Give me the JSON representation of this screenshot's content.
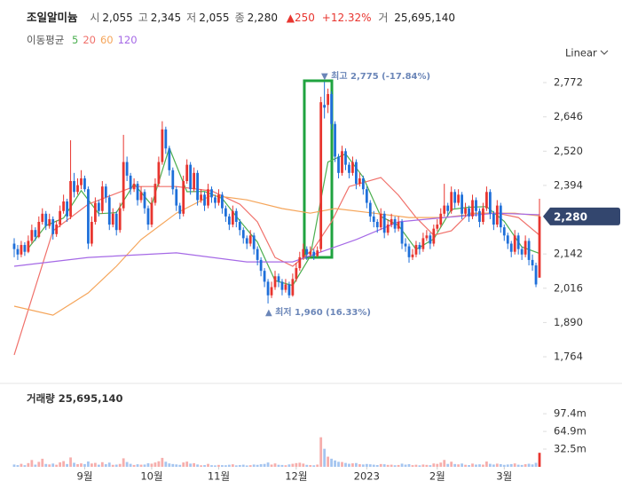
{
  "chart_data": {
    "type": "candlestick",
    "title": "조일알미늄",
    "quote": [
      {
        "label": "시",
        "value": "2,055"
      },
      {
        "label": "고",
        "value": "2,345"
      },
      {
        "label": "저",
        "value": "2,055"
      },
      {
        "label": "종",
        "value": "2,280"
      }
    ],
    "change": "▲250",
    "change_pct": "+12.32%",
    "volume_quote": {
      "label": "거",
      "value": "25,695,140"
    },
    "ma_label": "이동평균",
    "scale": "Linear",
    "up_color": "#e8352f",
    "down_color": "#1e6fd9",
    "candles": [
      [
        2180,
        2200,
        2130,
        2160
      ],
      [
        2160,
        2175,
        2120,
        2140
      ],
      [
        2140,
        2190,
        2130,
        2175
      ],
      [
        2175,
        2185,
        2135,
        2150
      ],
      [
        2150,
        2210,
        2145,
        2190
      ],
      [
        2190,
        2250,
        2180,
        2230
      ],
      [
        2230,
        2240,
        2190,
        2205
      ],
      [
        2205,
        2280,
        2200,
        2260
      ],
      [
        2260,
        2310,
        2250,
        2290
      ],
      [
        2290,
        2300,
        2230,
        2245
      ],
      [
        2245,
        2290,
        2235,
        2270
      ],
      [
        2270,
        2280,
        2195,
        2215
      ],
      [
        2215,
        2265,
        2205,
        2250
      ],
      [
        2250,
        2320,
        2240,
        2300
      ],
      [
        2300,
        2360,
        2290,
        2335
      ],
      [
        2335,
        2345,
        2260,
        2280
      ],
      [
        2280,
        2560,
        2270,
        2410
      ],
      [
        2410,
        2440,
        2350,
        2370
      ],
      [
        2370,
        2420,
        2360,
        2395
      ],
      [
        2395,
        2450,
        2380,
        2420
      ],
      [
        2420,
        2430,
        2370,
        2380
      ],
      [
        2380,
        2390,
        2160,
        2180
      ],
      [
        2180,
        2280,
        2170,
        2260
      ],
      [
        2260,
        2350,
        2250,
        2330
      ],
      [
        2330,
        2340,
        2280,
        2300
      ],
      [
        2300,
        2410,
        2290,
        2390
      ],
      [
        2390,
        2400,
        2330,
        2350
      ],
      [
        2350,
        2360,
        2230,
        2250
      ],
      [
        2250,
        2310,
        2240,
        2290
      ],
      [
        2290,
        2300,
        2210,
        2230
      ],
      [
        2230,
        2330,
        2220,
        2310
      ],
      [
        2310,
        2580,
        2300,
        2480
      ],
      [
        2480,
        2500,
        2410,
        2430
      ],
      [
        2430,
        2440,
        2360,
        2380
      ],
      [
        2380,
        2420,
        2370,
        2400
      ],
      [
        2400,
        2410,
        2320,
        2340
      ],
      [
        2340,
        2390,
        2330,
        2370
      ],
      [
        2370,
        2380,
        2290,
        2310
      ],
      [
        2310,
        2320,
        2230,
        2250
      ],
      [
        2250,
        2350,
        2240,
        2330
      ],
      [
        2330,
        2420,
        2320,
        2400
      ],
      [
        2400,
        2500,
        2390,
        2480
      ],
      [
        2480,
        2630,
        2470,
        2600
      ],
      [
        2600,
        2610,
        2510,
        2530
      ],
      [
        2530,
        2540,
        2430,
        2450
      ],
      [
        2450,
        2460,
        2360,
        2380
      ],
      [
        2380,
        2390,
        2300,
        2320
      ],
      [
        2320,
        2330,
        2270,
        2290
      ],
      [
        2290,
        2430,
        2280,
        2410
      ],
      [
        2410,
        2490,
        2400,
        2470
      ],
      [
        2470,
        2480,
        2360,
        2380
      ],
      [
        2380,
        2460,
        2370,
        2440
      ],
      [
        2440,
        2450,
        2320,
        2340
      ],
      [
        2340,
        2380,
        2330,
        2360
      ],
      [
        2360,
        2370,
        2300,
        2320
      ],
      [
        2320,
        2400,
        2310,
        2380
      ],
      [
        2380,
        2390,
        2330,
        2350
      ],
      [
        2350,
        2360,
        2310,
        2330
      ],
      [
        2330,
        2380,
        2320,
        2360
      ],
      [
        2360,
        2370,
        2290,
        2310
      ],
      [
        2310,
        2320,
        2260,
        2280
      ],
      [
        2280,
        2290,
        2230,
        2250
      ],
      [
        2250,
        2320,
        2240,
        2300
      ],
      [
        2300,
        2310,
        2240,
        2260
      ],
      [
        2260,
        2270,
        2210,
        2230
      ],
      [
        2230,
        2240,
        2180,
        2200
      ],
      [
        2200,
        2210,
        2160,
        2180
      ],
      [
        2180,
        2230,
        2170,
        2210
      ],
      [
        2210,
        2220,
        2140,
        2160
      ],
      [
        2160,
        2170,
        2100,
        2120
      ],
      [
        2120,
        2130,
        2060,
        2080
      ],
      [
        2080,
        2090,
        2020,
        2040
      ],
      [
        2040,
        2050,
        1960,
        1990
      ],
      [
        1990,
        2040,
        1980,
        2020
      ],
      [
        2020,
        2080,
        2010,
        2060
      ],
      [
        2060,
        2070,
        2020,
        2040
      ],
      [
        2040,
        2050,
        1990,
        2010
      ],
      [
        2010,
        2050,
        2000,
        2030
      ],
      [
        2030,
        2040,
        1980,
        1990
      ],
      [
        1990,
        2070,
        1985,
        2050
      ],
      [
        2050,
        2110,
        2040,
        2090
      ],
      [
        2090,
        2150,
        2080,
        2130
      ],
      [
        2130,
        2180,
        2120,
        2160
      ],
      [
        2160,
        2170,
        2120,
        2140
      ],
      [
        2140,
        2170,
        2130,
        2150
      ],
      [
        2150,
        2160,
        2120,
        2135
      ],
      [
        2135,
        2170,
        2130,
        2155
      ],
      [
        2160,
        2720,
        2150,
        2700
      ],
      [
        2690,
        2775,
        2640,
        2680
      ],
      [
        2690,
        2750,
        2660,
        2730
      ],
      [
        2730,
        2740,
        2600,
        2620
      ],
      [
        2620,
        2630,
        2480,
        2500
      ],
      [
        2500,
        2510,
        2420,
        2440
      ],
      [
        2440,
        2540,
        2430,
        2520
      ],
      [
        2520,
        2530,
        2450,
        2470
      ],
      [
        2470,
        2480,
        2420,
        2440
      ],
      [
        2440,
        2500,
        2430,
        2480
      ],
      [
        2480,
        2490,
        2380,
        2400
      ],
      [
        2400,
        2440,
        2390,
        2420
      ],
      [
        2420,
        2430,
        2360,
        2380
      ],
      [
        2380,
        2390,
        2310,
        2330
      ],
      [
        2330,
        2340,
        2260,
        2280
      ],
      [
        2280,
        2300,
        2240,
        2260
      ],
      [
        2260,
        2270,
        2220,
        2240
      ],
      [
        2240,
        2310,
        2230,
        2290
      ],
      [
        2290,
        2300,
        2200,
        2220
      ],
      [
        2220,
        2270,
        2210,
        2250
      ],
      [
        2250,
        2290,
        2240,
        2270
      ],
      [
        2270,
        2280,
        2220,
        2235
      ],
      [
        2235,
        2280,
        2225,
        2260
      ],
      [
        2260,
        2270,
        2160,
        2180
      ],
      [
        2180,
        2200,
        2150,
        2170
      ],
      [
        2170,
        2180,
        2110,
        2130
      ],
      [
        2130,
        2160,
        2120,
        2140
      ],
      [
        2140,
        2190,
        2130,
        2175
      ],
      [
        2175,
        2185,
        2140,
        2160
      ],
      [
        2160,
        2220,
        2150,
        2200
      ],
      [
        2200,
        2230,
        2190,
        2210
      ],
      [
        2210,
        2220,
        2160,
        2180
      ],
      [
        2180,
        2250,
        2170,
        2235
      ],
      [
        2235,
        2270,
        2225,
        2250
      ],
      [
        2250,
        2310,
        2240,
        2290
      ],
      [
        2290,
        2400,
        2280,
        2320
      ],
      [
        2320,
        2330,
        2280,
        2300
      ],
      [
        2300,
        2390,
        2290,
        2370
      ],
      [
        2370,
        2380,
        2310,
        2330
      ],
      [
        2330,
        2380,
        2320,
        2360
      ],
      [
        2360,
        2370,
        2270,
        2290
      ],
      [
        2290,
        2330,
        2280,
        2310
      ],
      [
        2310,
        2320,
        2260,
        2280
      ],
      [
        2280,
        2360,
        2270,
        2340
      ],
      [
        2340,
        2350,
        2280,
        2300
      ],
      [
        2300,
        2310,
        2240,
        2260
      ],
      [
        2260,
        2330,
        2250,
        2310
      ],
      [
        2310,
        2390,
        2300,
        2370
      ],
      [
        2370,
        2380,
        2270,
        2290
      ],
      [
        2290,
        2300,
        2230,
        2250
      ],
      [
        2250,
        2340,
        2240,
        2320
      ],
      [
        2320,
        2330,
        2220,
        2240
      ],
      [
        2240,
        2250,
        2190,
        2210
      ],
      [
        2210,
        2220,
        2160,
        2180
      ],
      [
        2180,
        2190,
        2130,
        2150
      ],
      [
        2150,
        2230,
        2140,
        2210
      ],
      [
        2210,
        2220,
        2140,
        2160
      ],
      [
        2160,
        2170,
        2120,
        2140
      ],
      [
        2140,
        2210,
        2130,
        2190
      ],
      [
        2190,
        2200,
        2100,
        2120
      ],
      [
        2120,
        2140,
        2080,
        2100
      ],
      [
        2100,
        2110,
        2020,
        2030
      ],
      [
        2055,
        2345,
        2055,
        2280
      ]
    ],
    "ylim": [
      1689,
      2831
    ],
    "yticks": [
      {
        "value": 1764,
        "label": "1,764"
      },
      {
        "value": 1890,
        "label": "1,890"
      },
      {
        "value": 2016,
        "label": "2,016"
      },
      {
        "value": 2142,
        "label": "2,142"
      },
      {
        "value": 2394,
        "label": "2,394"
      },
      {
        "value": 2520,
        "label": "2,520"
      },
      {
        "value": 2646,
        "label": "2,646"
      },
      {
        "value": 2772,
        "label": "2,772"
      }
    ],
    "xticks": [
      {
        "value": 20,
        "label": "9월"
      },
      {
        "value": 39,
        "label": "10월"
      },
      {
        "value": 58,
        "label": "11월"
      },
      {
        "value": 80,
        "label": "12월"
      },
      {
        "value": 100,
        "label": "2023"
      },
      {
        "value": 120,
        "label": "2월"
      },
      {
        "value": 139,
        "label": "3월"
      }
    ],
    "current_price": {
      "value": 2280,
      "label": "2,280"
    },
    "annotations": [
      {
        "text": "▼ 최고 2,775 (-17.84%)"
      },
      {
        "text": "▲ 최저 1,960 (16.33%)"
      }
    ],
    "series": [
      {
        "name": "5",
        "color": "#4caf50",
        "x": [
          4,
          9,
          14,
          19,
          24,
          29,
          34,
          39,
          44,
          49,
          54,
          59,
          64,
          69,
          74,
          79,
          84,
          89,
          94,
          99,
          104,
          109,
          114,
          119,
          124,
          129,
          134,
          139,
          144,
          149
        ],
        "values": [
          2163,
          2246,
          2274,
          2375,
          2290,
          2294,
          2400,
          2322,
          2532,
          2371,
          2372,
          2346,
          2264,
          2186,
          2044,
          2026,
          2134,
          2480,
          2510,
          2424,
          2280,
          2247,
          2159,
          2197,
          2306,
          2314,
          2316,
          2262,
          2168,
          2144
        ]
      },
      {
        "name": "20",
        "color": "#f0706a",
        "x": [
          0,
          11,
          21,
          34,
          46,
          56,
          64,
          69,
          74,
          79,
          85,
          90,
          95,
          104,
          109,
          114,
          119,
          124,
          129,
          137,
          143,
          149
        ],
        "values": [
          1771,
          2227,
          2325,
          2390,
          2390,
          2374,
          2325,
          2260,
          2129,
          2097,
          2162,
          2260,
          2390,
          2423,
          2358,
          2276,
          2211,
          2227,
          2292,
          2292,
          2276,
          2211
        ]
      },
      {
        "name": "60",
        "color": "#f5a55a",
        "x": [
          0,
          11,
          21,
          29,
          36,
          46,
          56,
          66,
          76,
          84,
          91,
          102,
          112,
          122,
          132,
          142,
          149
        ],
        "values": [
          1950,
          1917,
          1999,
          2097,
          2195,
          2292,
          2358,
          2341,
          2309,
          2292,
          2309,
          2292,
          2276,
          2276,
          2292,
          2292,
          2282
        ]
      },
      {
        "name": "120",
        "color": "#a569e6",
        "x": [
          0,
          21,
          46,
          66,
          79,
          97,
          109,
          122,
          137,
          149
        ],
        "values": [
          2097,
          2129,
          2146,
          2113,
          2113,
          2195,
          2260,
          2276,
          2292,
          2286
        ]
      }
    ],
    "volume_title": "거래량",
    "volume_total": "25,695,140",
    "volume": [
      4.2,
      3.1,
      5.5,
      3.0,
      6.8,
      12.5,
      4.0,
      9.1,
      14.8,
      5.2,
      4.4,
      6.0,
      3.8,
      8.2,
      10.5,
      5.1,
      17.2,
      7.4,
      4.9,
      6.3,
      5.0,
      9.8,
      6.1,
      7.2,
      3.9,
      8.5,
      4.8,
      7.7,
      3.6,
      4.1,
      5.3,
      15.6,
      8.8,
      5.5,
      3.4,
      4.7,
      3.9,
      4.2,
      6.5,
      5.8,
      7.9,
      10.2,
      16.4,
      9.3,
      6.2,
      5.1,
      4.4,
      3.6,
      8.0,
      9.6,
      5.9,
      6.7,
      4.3,
      2.8,
      3.2,
      5.4,
      3.0,
      2.6,
      3.5,
      3.1,
      2.9,
      3.8,
      4.6,
      2.7,
      3.3,
      3.9,
      2.5,
      3.0,
      4.2,
      3.6,
      4.8,
      5.3,
      7.9,
      4.1,
      6.2,
      3.7,
      3.4,
      2.9,
      4.4,
      5.6,
      6.8,
      7.5,
      5.9,
      3.6,
      3.2,
      2.8,
      4.1,
      54.2,
      33.1,
      18.6,
      14.9,
      11.7,
      9.2,
      8.8,
      7.1,
      5.6,
      6.4,
      6.9,
      4.8,
      4.3,
      5.2,
      4.6,
      3.9,
      3.3,
      5.1,
      4.7,
      3.5,
      3.9,
      2.9,
      3.4,
      5.8,
      4.0,
      4.9,
      3.1,
      3.8,
      2.7,
      4.2,
      3.5,
      3.0,
      6.1,
      5.4,
      7.8,
      12.6,
      5.3,
      9.4,
      5.1,
      4.5,
      6.0,
      3.7,
      3.2,
      5.9,
      4.1,
      4.6,
      4.0,
      9.7,
      5.5,
      4.2,
      5.8,
      4.9,
      3.6,
      4.3,
      5.0,
      6.2,
      3.9,
      3.4,
      4.8,
      5.6,
      4.4,
      7.3,
      25.7
    ],
    "vlim": [
      0,
      140
    ],
    "vticks": [
      {
        "value": 32.5,
        "label": "32.5m"
      },
      {
        "value": 64.9,
        "label": "64.9m"
      },
      {
        "value": 97.4,
        "label": "97.4m"
      }
    ]
  }
}
